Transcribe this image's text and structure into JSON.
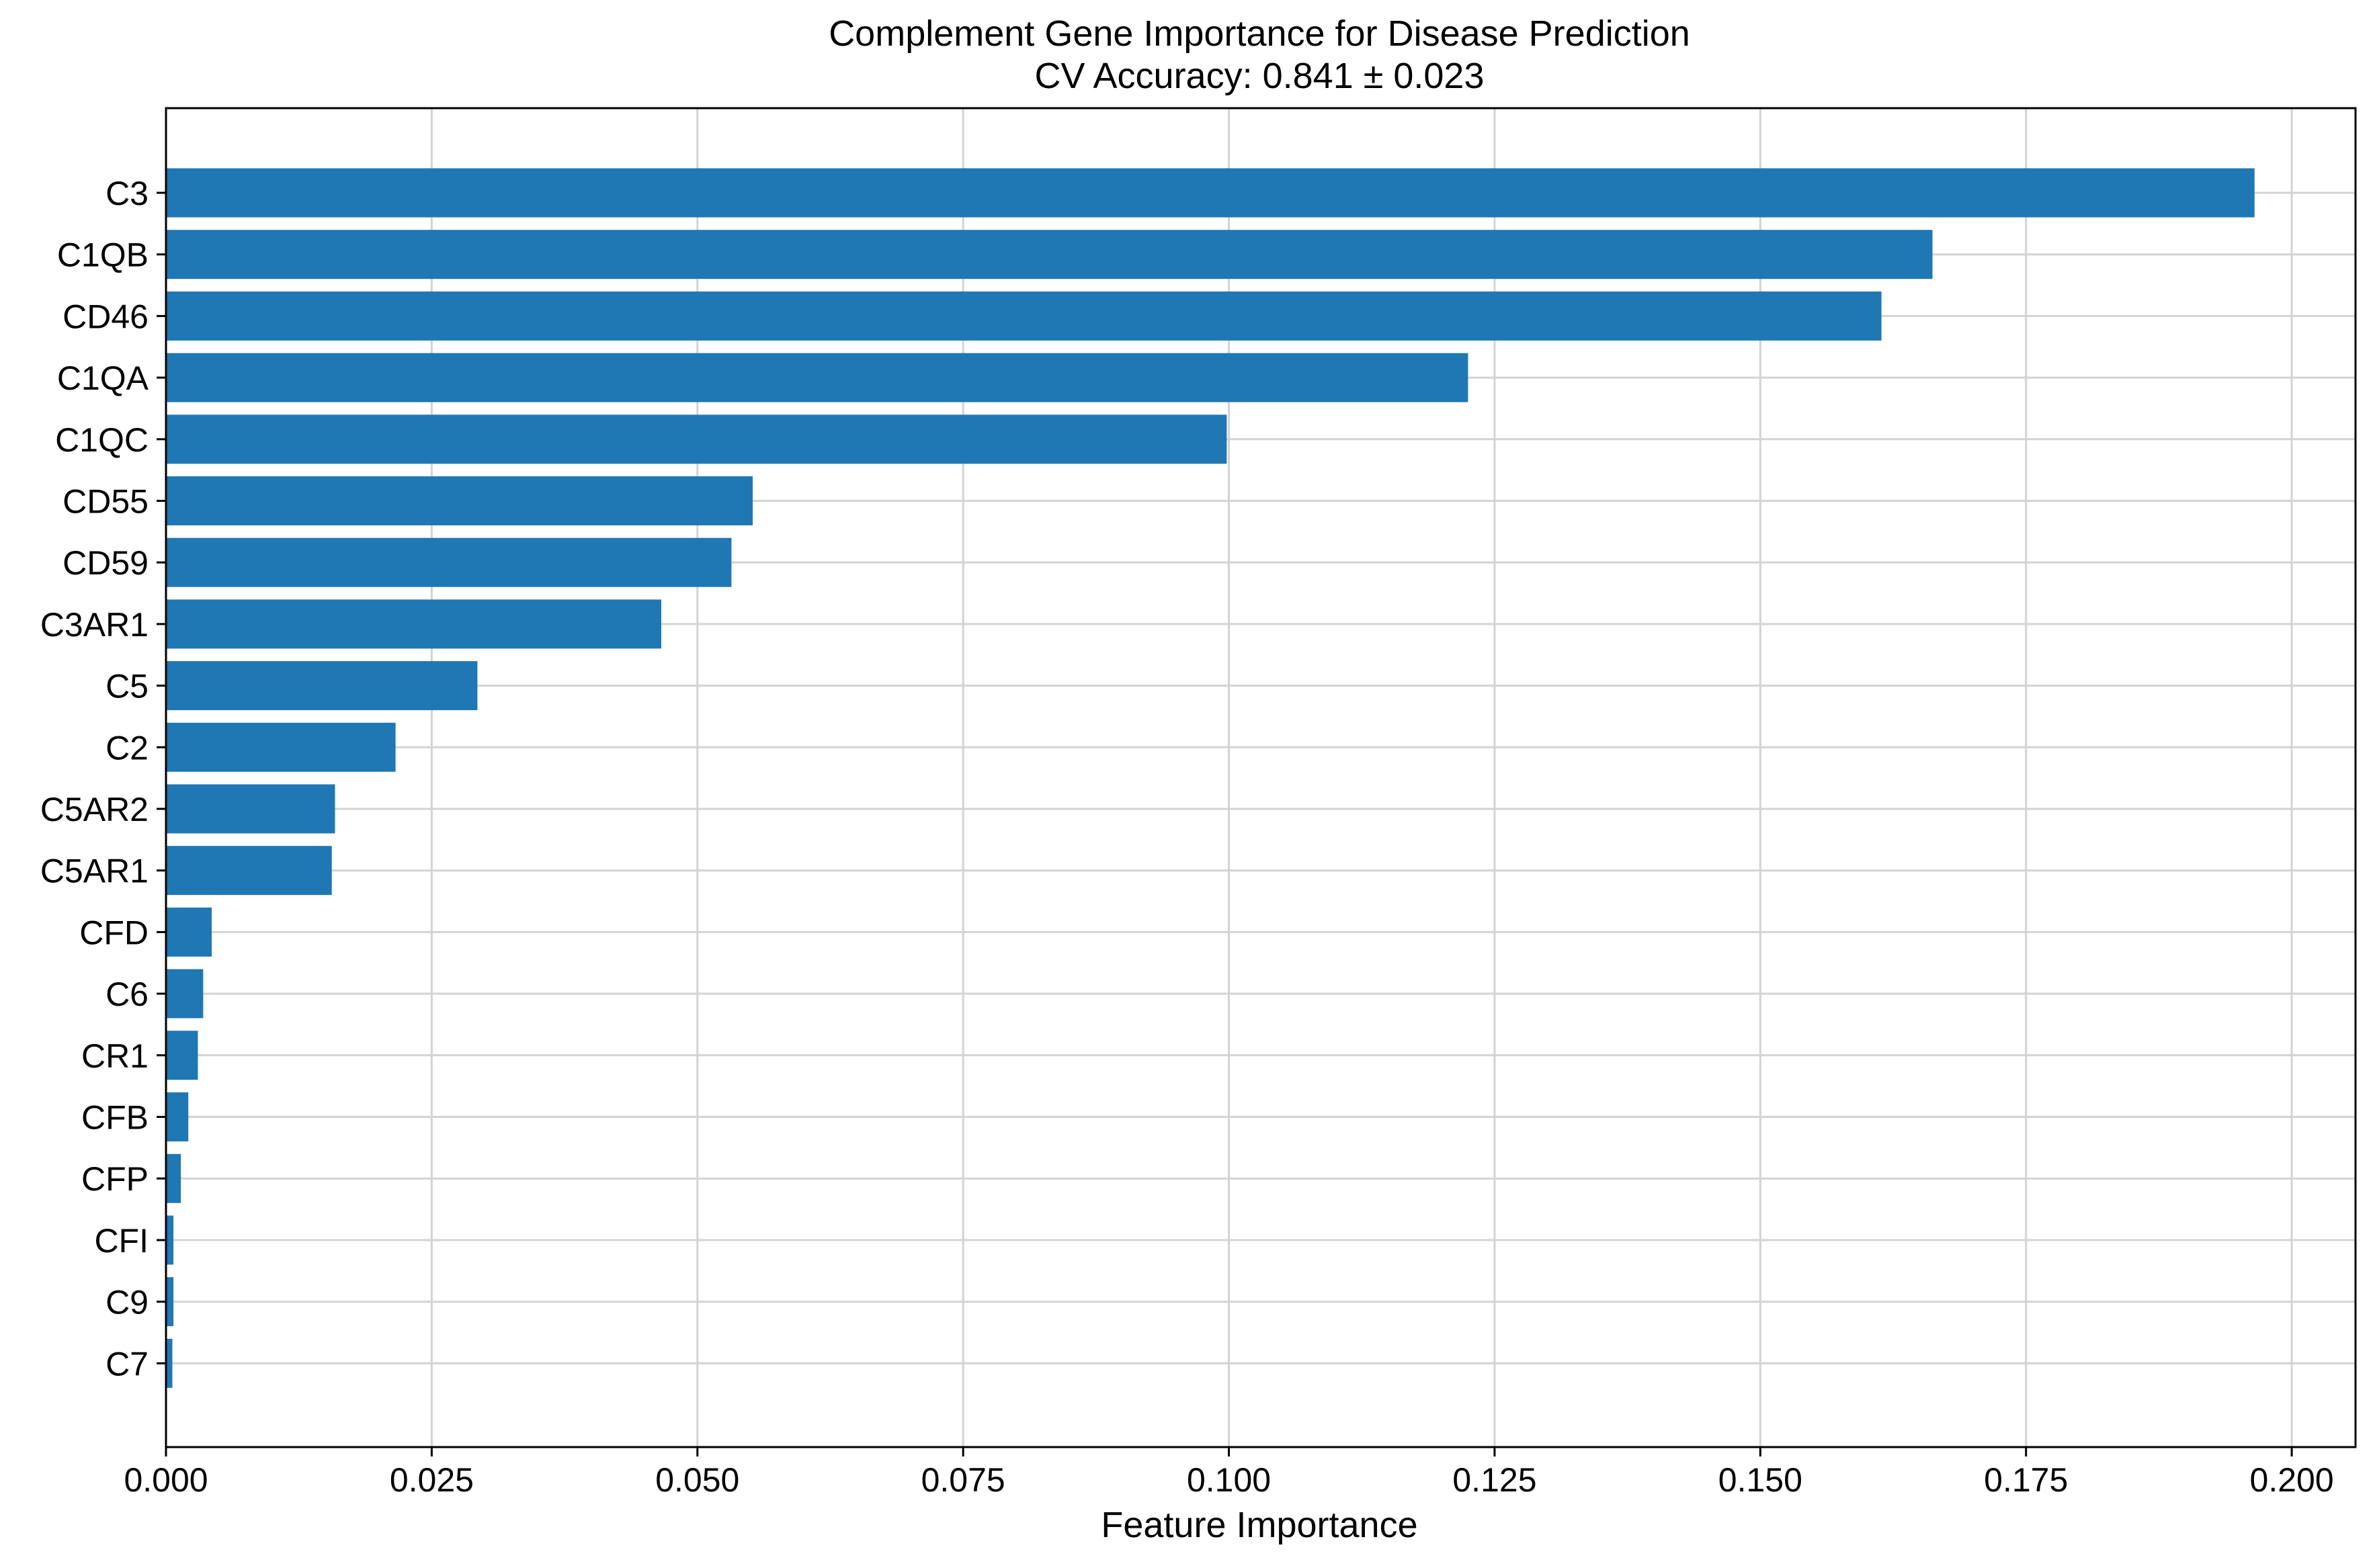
{
  "chart_data": {
    "type": "bar",
    "orientation": "horizontal",
    "title": "Complement Gene Importance for Disease Prediction",
    "subtitle": "CV Accuracy: 0.841 ± 0.023",
    "xlabel": "Feature Importance",
    "ylabel": "",
    "xlim": [
      0,
      0.206
    ],
    "xticks": [
      "0.000",
      "0.025",
      "0.050",
      "0.075",
      "0.100",
      "0.125",
      "0.150",
      "0.175",
      "0.200"
    ],
    "grid": true,
    "bar_color": "#1f77b4",
    "categories": [
      "C3",
      "C1QB",
      "CD46",
      "C1QA",
      "C1QC",
      "CD55",
      "CD59",
      "C3AR1",
      "C5",
      "C2",
      "C5AR2",
      "C5AR1",
      "CFD",
      "C6",
      "CR1",
      "CFB",
      "CFP",
      "CFI",
      "C9",
      "C7"
    ],
    "values": [
      0.1965,
      0.1662,
      0.1614,
      0.1225,
      0.0998,
      0.0552,
      0.0532,
      0.0466,
      0.0293,
      0.0216,
      0.0159,
      0.0156,
      0.0043,
      0.0035,
      0.003,
      0.0021,
      0.0014,
      0.0007,
      0.0007,
      0.0006
    ]
  }
}
